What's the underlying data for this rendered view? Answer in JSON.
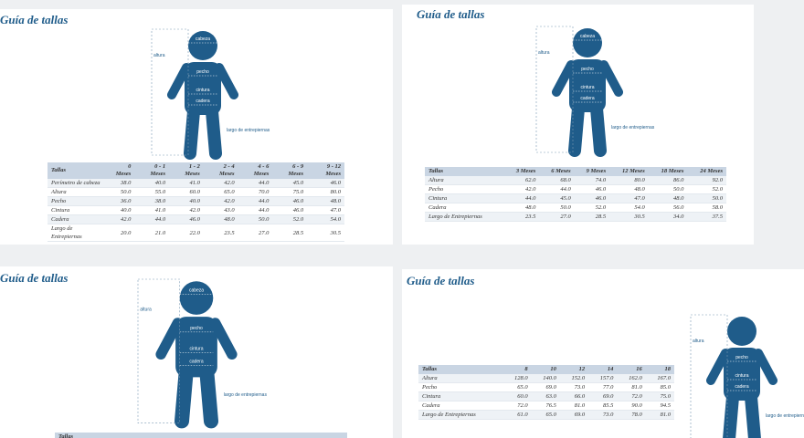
{
  "panels": [
    {
      "title": "Guía de tallas",
      "figure_labels": {
        "head": "cabeza",
        "height": "altura",
        "chest": "pecho",
        "waist": "cintura",
        "hip": "cadera",
        "inseam": "largo de entrepiernas"
      },
      "table": {
        "header": [
          "Tallas",
          "0 Meses",
          "0 - 1 Meses",
          "1 - 2 Meses",
          "2 - 4 Meses",
          "4 - 6 Meses",
          "6 - 9 Meses",
          "9 - 12 Meses"
        ],
        "rows": [
          [
            "Perímetro de cabeza",
            "38.0",
            "40.0",
            "41.0",
            "42.0",
            "44.0",
            "45.0",
            "46.0"
          ],
          [
            "Altura",
            "50.0",
            "55.0",
            "60.0",
            "65.0",
            "70.0",
            "75.0",
            "80.0"
          ],
          [
            "Pecho",
            "36.0",
            "38.0",
            "40.0",
            "42.0",
            "44.0",
            "46.0",
            "48.0"
          ],
          [
            "Cintura",
            "40.0",
            "41.0",
            "42.0",
            "43.0",
            "44.0",
            "46.0",
            "47.0"
          ],
          [
            "Cadera",
            "42.0",
            "44.0",
            "46.0",
            "48.0",
            "50.0",
            "52.0",
            "54.0"
          ],
          [
            "Largo de Entrepiernas",
            "20.0",
            "21.0",
            "22.0",
            "23.5",
            "27.0",
            "28.5",
            "30.5"
          ]
        ]
      }
    },
    {
      "title": "Guía de tallas",
      "figure_labels": {
        "head": "cabeza",
        "height": "altura",
        "chest": "pecho",
        "waist": "cintura",
        "hip": "cadera",
        "inseam": "largo de entrepiernas"
      },
      "table": {
        "header": [
          "Tallas",
          "3 Meses",
          "6 Meses",
          "9 Meses",
          "12 Meses",
          "18 Meses",
          "24 Meses"
        ],
        "rows": [
          [
            "Altura",
            "62.0",
            "68.0",
            "74.0",
            "80.0",
            "86.0",
            "92.0"
          ],
          [
            "Pecho",
            "42.0",
            "44.0",
            "46.0",
            "48.0",
            "50.0",
            "52.0"
          ],
          [
            "Cintura",
            "44.0",
            "45.0",
            "46.0",
            "47.0",
            "48.0",
            "50.0"
          ],
          [
            "Cadera",
            "48.0",
            "50.0",
            "52.0",
            "54.0",
            "56.0",
            "58.0"
          ],
          [
            "Largo de Entrepiernas",
            "23.5",
            "27.0",
            "28.5",
            "30.5",
            "34.0",
            "37.5"
          ]
        ]
      }
    },
    {
      "title": "Guía de tallas",
      "figure_labels": {
        "head": "cabeza",
        "height": "altura",
        "chest": "pecho",
        "waist": "cintura",
        "hip": "cadera",
        "inseam": "largo de entrepiernas"
      },
      "table": {
        "header": [
          "Tallas"
        ],
        "rows": []
      }
    },
    {
      "title": "Guía de tallas",
      "figure_labels": {
        "height": "altura",
        "chest": "pecho",
        "waist": "cintura",
        "hip": "cadera",
        "inseam": "largo de entrepiernas"
      },
      "table": {
        "header": [
          "Tallas",
          "8",
          "10",
          "12",
          "14",
          "16",
          "18"
        ],
        "rows": [
          [
            "Altura",
            "128.0",
            "140.0",
            "152.0",
            "157.0",
            "162.0",
            "167.0"
          ],
          [
            "Pecho",
            "65.0",
            "69.0",
            "73.0",
            "77.0",
            "81.0",
            "85.0"
          ],
          [
            "Cintura",
            "60.0",
            "63.0",
            "66.0",
            "69.0",
            "72.0",
            "75.0"
          ],
          [
            "Cadera",
            "72.0",
            "76.5",
            "81.0",
            "85.5",
            "90.0",
            "94.5"
          ],
          [
            "Largo de Entrepiernas",
            "61.0",
            "65.0",
            "69.0",
            "73.0",
            "78.0",
            "81.0"
          ]
        ]
      }
    }
  ]
}
